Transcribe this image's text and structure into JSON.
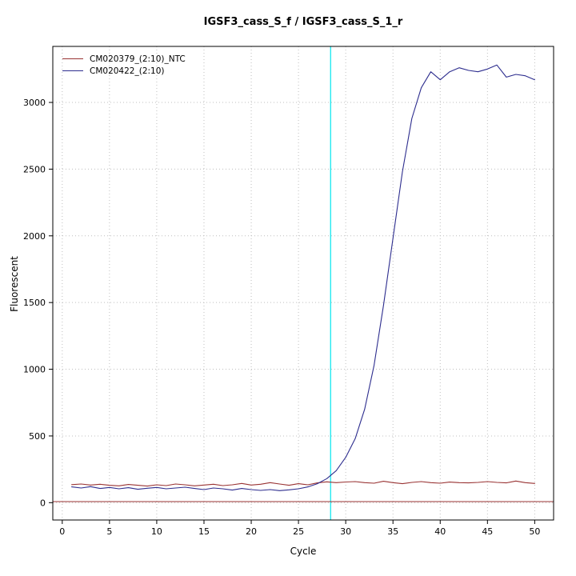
{
  "window": {
    "background": "#ffffff"
  },
  "chart_data": {
    "type": "line",
    "title": "IGSF3_cass_S_f / IGSF3_cass_S_1_r",
    "xlabel": "Cycle",
    "ylabel": "Fluorescent",
    "xlim": [
      -1,
      52
    ],
    "ylim": [
      -130,
      3420
    ],
    "x_ticks": [
      0,
      5,
      10,
      15,
      20,
      25,
      30,
      35,
      40,
      45,
      50
    ],
    "y_ticks": [
      0,
      500,
      1000,
      1500,
      2000,
      2500,
      3000
    ],
    "grid": true,
    "grid_color": "#bfbfbf",
    "box_color": "#000000",
    "ct_line": {
      "x": 28.4,
      "color": "#00e5ee"
    },
    "threshold_line": {
      "y": 8,
      "color": "#993333"
    },
    "legend_position": "top-left",
    "series": [
      {
        "name": "CM020379_(2:10)_NTC",
        "color": "#993333",
        "x": [
          1,
          2,
          3,
          4,
          5,
          6,
          7,
          8,
          9,
          10,
          11,
          12,
          13,
          14,
          15,
          16,
          17,
          18,
          19,
          20,
          21,
          22,
          23,
          24,
          25,
          26,
          27,
          28,
          29,
          30,
          31,
          32,
          33,
          34,
          35,
          36,
          37,
          38,
          39,
          40,
          41,
          42,
          43,
          44,
          45,
          46,
          47,
          48,
          49,
          50
        ],
        "y": [
          135,
          140,
          132,
          138,
          130,
          126,
          136,
          130,
          124,
          134,
          128,
          140,
          134,
          126,
          132,
          138,
          128,
          134,
          144,
          132,
          138,
          150,
          140,
          130,
          142,
          134,
          148,
          156,
          150,
          155,
          158,
          150,
          146,
          160,
          150,
          142,
          152,
          158,
          150,
          146,
          154,
          150,
          148,
          152,
          158,
          152,
          148,
          162,
          150,
          144
        ]
      },
      {
        "name": "CM020422_(2:10)",
        "color": "#2d2d8e",
        "x": [
          1,
          2,
          3,
          4,
          5,
          6,
          7,
          8,
          9,
          10,
          11,
          12,
          13,
          14,
          15,
          16,
          17,
          18,
          19,
          20,
          21,
          22,
          23,
          24,
          25,
          26,
          27,
          28,
          29,
          30,
          31,
          32,
          33,
          34,
          35,
          36,
          37,
          38,
          39,
          40,
          41,
          42,
          43,
          44,
          45,
          46,
          47,
          48,
          49,
          50
        ],
        "y": [
          118,
          110,
          120,
          106,
          114,
          104,
          112,
          100,
          108,
          114,
          104,
          110,
          116,
          106,
          98,
          110,
          104,
          94,
          106,
          98,
          92,
          98,
          90,
          96,
          104,
          118,
          142,
          180,
          240,
          340,
          480,
          700,
          1030,
          1480,
          1980,
          2480,
          2880,
          3110,
          3230,
          3170,
          3230,
          3260,
          3240,
          3230,
          3250,
          3280,
          3190,
          3210,
          3200,
          3170
        ]
      }
    ]
  }
}
